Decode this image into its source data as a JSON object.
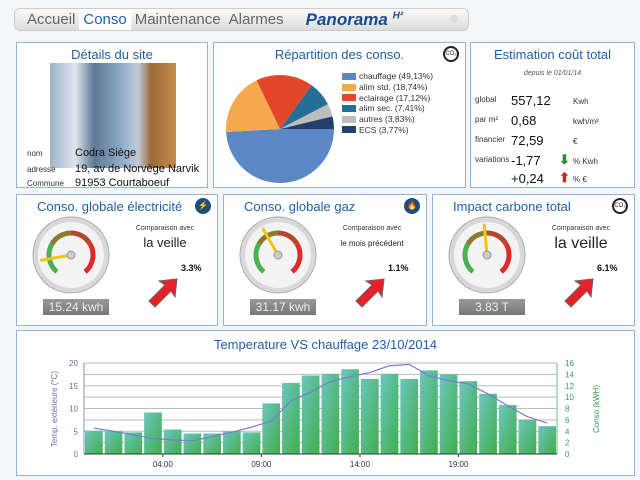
{
  "nav": {
    "tabs": [
      "Accueil",
      "Conso",
      "Maintenance",
      "Alarmes"
    ],
    "active": "Conso",
    "brand": "Panorama",
    "brand_sup": "H²"
  },
  "site": {
    "title": "Détails du site",
    "labels": {
      "nom": "nom",
      "adresse": "adresse",
      "commune": "Commune"
    },
    "nom": "Codra Siège",
    "adresse": "19, av de Norvège Narvik",
    "commune": "91953 Courtaboeuf"
  },
  "repartition": {
    "title": "Répartition des conso.",
    "badge": "CO2",
    "slices": [
      {
        "label": "chauffage (49,13%)",
        "value": 49.13,
        "color": "#5b87c5"
      },
      {
        "label": "alim std. (18,74%)",
        "value": 18.74,
        "color": "#f5a94c"
      },
      {
        "label": "eclairage (17,12%)",
        "value": 17.12,
        "color": "#e2472a"
      },
      {
        "label": "alim sec. (7,41%)",
        "value": 7.41,
        "color": "#246f98"
      },
      {
        "label": "autres (3,83%)",
        "value": 3.83,
        "color": "#bdbdbd"
      },
      {
        "label": "ECS (3,77%)",
        "value": 3.77,
        "color": "#253f6c"
      }
    ]
  },
  "cout": {
    "title": "Estimation coût total",
    "subtitle": "depuis le 01/01/14",
    "rows": [
      {
        "label": "global",
        "value": "557,12",
        "unit": "Kwh"
      },
      {
        "label": "par m²",
        "value": "0,68",
        "unit": "kwh/m²"
      },
      {
        "label": "financier",
        "value": "72,59",
        "unit": "€"
      },
      {
        "label": "variations",
        "value": "-1,77",
        "unit": "% Kwh",
        "trend": "down"
      },
      {
        "label": "",
        "value": "+0,24",
        "unit": "% €",
        "trend": "up"
      }
    ]
  },
  "gauges": [
    {
      "title": "Conso. globale électricité",
      "icon": "lightning-icon",
      "compare_label": "Comparaison avec",
      "compare": "la veille",
      "pct": "3.3%",
      "readout": "15.24 kwh",
      "needle": 0.13
    },
    {
      "title": "Conso. globale gaz",
      "icon": "flame-icon",
      "compare_label": "Comparaison avec",
      "compare": "le mois précédent",
      "pct": "1.1%",
      "readout": "31.17 kwh",
      "needle": 0.39
    },
    {
      "title": "Impact carbone total",
      "icon": "co2-icon",
      "compare_label": "Comparaison avec",
      "compare": "la veille",
      "pct": "6.1%",
      "readout": "3.83 T",
      "needle": 0.48
    }
  ],
  "chart_data": {
    "type": "bar+line",
    "title": "Temperature VS chauffage  23/10/2014",
    "ylabel_left": "Temp. extérieure (°C)",
    "ylabel_right": "Conso (kWH)",
    "ylim_left": [
      0,
      20
    ],
    "ylim_right": [
      0,
      16
    ],
    "yticks_left": [
      0,
      5,
      10,
      15,
      20
    ],
    "yticks_right": [
      0,
      2,
      4,
      6,
      8,
      10,
      12,
      14,
      16
    ],
    "xtick_labels": [
      {
        "hour": 4,
        "label": "04:00"
      },
      {
        "hour": 9,
        "label": "09:00"
      },
      {
        "hour": 14,
        "label": "14:00"
      },
      {
        "hour": 19,
        "label": "19:00"
      }
    ],
    "hours": [
      0,
      1,
      2,
      3,
      4,
      5,
      6,
      7,
      8,
      9,
      10,
      11,
      12,
      13,
      14,
      15,
      16,
      17,
      18,
      19,
      20,
      21,
      22,
      23
    ],
    "conso": [
      4.1,
      4.0,
      3.8,
      7.3,
      4.3,
      3.6,
      3.6,
      4.0,
      3.8,
      8.9,
      12.5,
      13.8,
      14.1,
      14.9,
      13.2,
      14.1,
      13.2,
      14.7,
      14.0,
      12.8,
      10.6,
      8.6,
      6.0,
      4.9
    ],
    "temperature": [
      5.7,
      5.0,
      4.2,
      3.4,
      3.1,
      2.9,
      3.8,
      4.8,
      5.9,
      7.2,
      11.7,
      13.6,
      15.9,
      17.0,
      17.9,
      19.4,
      19.7,
      17.2,
      16.1,
      15.4,
      13.2,
      10.6,
      8.2,
      6.8
    ],
    "grid": true
  }
}
